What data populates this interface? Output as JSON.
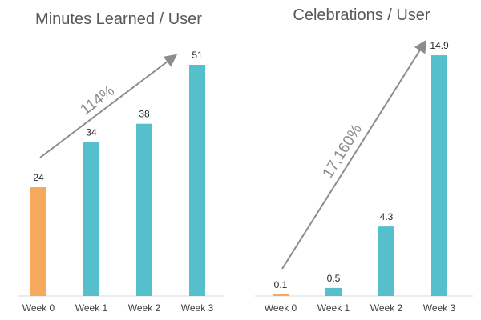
{
  "chart_data": [
    {
      "type": "bar",
      "title": "Minutes Learned / User",
      "categories": [
        "Week 0",
        "Week 1",
        "Week 2",
        "Week 3"
      ],
      "values": [
        24,
        34,
        38,
        51
      ],
      "value_labels": [
        "24",
        "34",
        "38",
        "51"
      ],
      "bar_colors": [
        "#f4a95c",
        "#56bfcc",
        "#56bfcc",
        "#56bfcc"
      ],
      "ylim": [
        0,
        60
      ],
      "grid": false,
      "annotation": "114%"
    },
    {
      "type": "bar",
      "title": "Celebrations / User",
      "categories": [
        "Week 0",
        "Week 1",
        "Week 2",
        "Week 3"
      ],
      "values": [
        0.1,
        0.5,
        4.3,
        14.9
      ],
      "value_labels": [
        "0.1",
        "0.5",
        "4.3",
        "14.9"
      ],
      "bar_colors": [
        "#f4a95c",
        "#56bfcc",
        "#56bfcc",
        "#56bfcc"
      ],
      "ylim": [
        0,
        15.2
      ],
      "grid": false,
      "annotation": "17,160%"
    }
  ],
  "colors": {
    "baseline": "#f4a95c",
    "bar": "#56bfcc",
    "arrow": "#8c8c8c",
    "axis": "#d9d9d9"
  }
}
